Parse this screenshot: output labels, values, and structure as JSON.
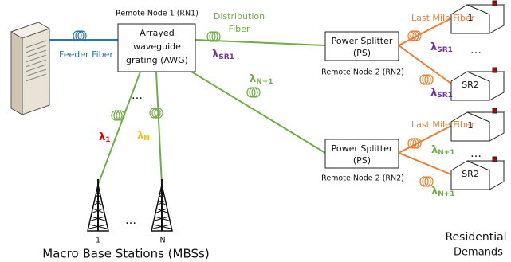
{
  "rn1": {
    "title": "Remote Node 1 (RN1)",
    "lines": [
      "Arrayed",
      "waveguide",
      "grating (AWG)"
    ]
  },
  "feeder": {
    "label": "Feeder Fiber"
  },
  "distribution": {
    "lines": [
      "Distribution",
      "Fiber"
    ],
    "wavelength": {
      "symbol": "λ",
      "sub": "SR1"
    }
  },
  "lower_link": {
    "symbol": "λ",
    "sub": "N+1"
  },
  "mbs_links": {
    "ellipsis": "…",
    "wavelengths": [
      {
        "symbol": "λ",
        "sub": "1"
      },
      {
        "symbol": "λ",
        "sub": "N"
      }
    ]
  },
  "stations": {
    "labels": [
      "1",
      "N"
    ],
    "ellipsis": "…",
    "caption": "Macro Base Stations (MBSs)"
  },
  "splitters": [
    {
      "lines": [
        "Power Splitter",
        "(PS)"
      ],
      "node": "Remote Node 2 (RN2)",
      "last_mile": "Last Mile Fiber",
      "wavelengths": [
        {
          "symbol": "λ",
          "sub": "SR1"
        },
        {
          "symbol": "λ",
          "sub": "SR1"
        }
      ],
      "houses": [
        "1",
        "SR2"
      ],
      "ellipsis": "…"
    },
    {
      "lines": [
        "Power Splitter",
        "(PS)"
      ],
      "node": "Remote Node 2 (RN2)",
      "last_mile": "Last Mile Fiber",
      "wavelengths": [
        {
          "symbol": "λ",
          "sub": "N+1"
        },
        {
          "symbol": "λ",
          "sub": "N+1"
        }
      ],
      "houses": [
        "1",
        "SR2"
      ],
      "ellipsis": "…"
    }
  ],
  "residential": {
    "lines": [
      "Residential",
      "Demands"
    ]
  }
}
